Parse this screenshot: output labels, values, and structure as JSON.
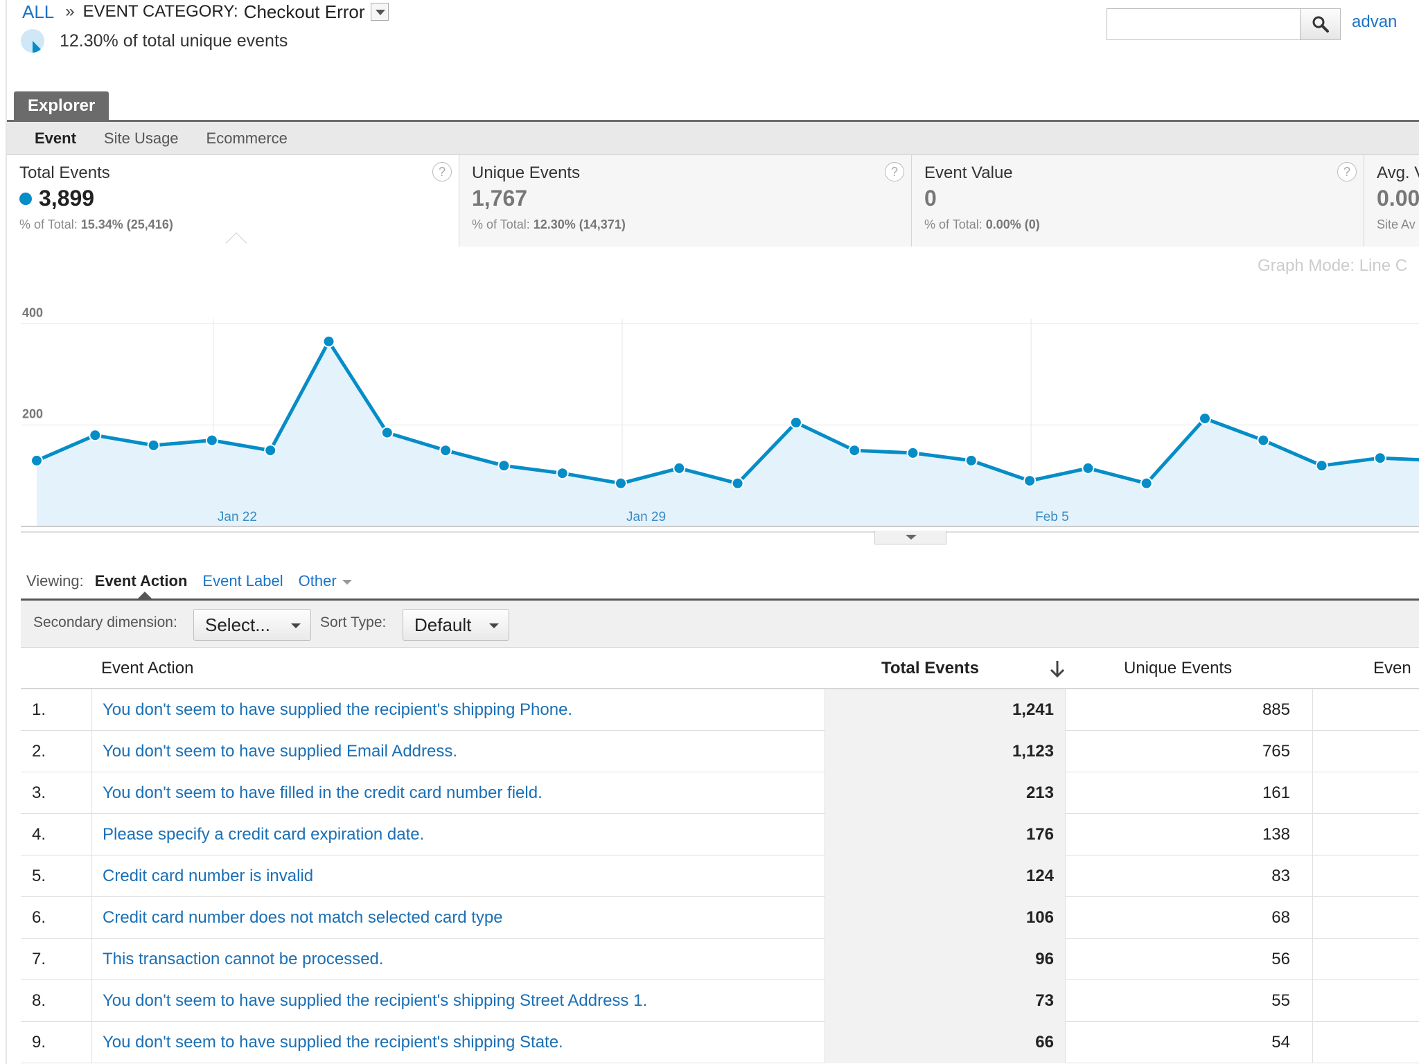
{
  "breadcrumb": {
    "all": "ALL",
    "separator": "»",
    "category_label": "EVENT CATEGORY:",
    "category_value": "Checkout Error"
  },
  "summary": {
    "text": "12.30% of total unique events",
    "share_fraction": 0.123
  },
  "explorer": {
    "tab": "Explorer",
    "subtabs": [
      "Event",
      "Site Usage",
      "Ecommerce"
    ],
    "active_subtab": "Event"
  },
  "scorecards": [
    {
      "title": "Total Events",
      "value": "3,899",
      "sub_prefix": "% of Total:",
      "sub_value": "15.34% (25,416)"
    },
    {
      "title": "Unique Events",
      "value": "1,767",
      "sub_prefix": "% of Total:",
      "sub_value": "12.30% (14,371)"
    },
    {
      "title": "Event Value",
      "value": "0",
      "sub_prefix": "% of Total:",
      "sub_value": "0.00% (0)"
    },
    {
      "title": "Avg. V",
      "value": "0.00",
      "sub_prefix": "Site Av",
      "sub_value": ""
    }
  ],
  "graph_mode": {
    "label": "Graph Mode:",
    "value": "Line C"
  },
  "chart_data": {
    "type": "area",
    "series": [
      {
        "name": "Total Events",
        "values": [
          130,
          180,
          160,
          170,
          150,
          365,
          185,
          150,
          120,
          105,
          85,
          115,
          85,
          205,
          150,
          145,
          130,
          90,
          115,
          85,
          213,
          170,
          120,
          135,
          130
        ]
      }
    ],
    "x_tick_labels": [
      "Jan 22",
      "Jan 29",
      "Feb 5"
    ],
    "x_tick_indices": [
      3,
      10,
      17
    ],
    "y_ticks": [
      400,
      200
    ],
    "ylim": [
      0,
      410
    ],
    "color": "#058dc7",
    "fill": "#e4f2fb",
    "grid": true
  },
  "viewing": {
    "label": "Viewing:",
    "options": [
      "Event Action",
      "Event Label",
      "Other"
    ],
    "active": "Event Action"
  },
  "toolbar": {
    "secondary_label": "Secondary dimension:",
    "secondary_value": "Select...",
    "sort_label": "Sort Type:",
    "sort_value": "Default",
    "search_value": "",
    "advanced": "advan"
  },
  "table": {
    "columns": [
      "Event Action",
      "Total Events",
      "Unique Events",
      "Even"
    ],
    "rows": [
      {
        "index": "1.",
        "action": "You don't seem to have supplied the recipient's shipping Phone.",
        "total": "1,241",
        "unique": "885"
      },
      {
        "index": "2.",
        "action": "You don't seem to have supplied Email Address.",
        "total": "1,123",
        "unique": "765"
      },
      {
        "index": "3.",
        "action": "You don't seem to have filled in the credit card number field.",
        "total": "213",
        "unique": "161"
      },
      {
        "index": "4.",
        "action": "Please specify a credit card expiration date.",
        "total": "176",
        "unique": "138"
      },
      {
        "index": "5.",
        "action": "Credit card number is invalid",
        "total": "124",
        "unique": "83"
      },
      {
        "index": "6.",
        "action": "Credit card number does not match selected card type",
        "total": "106",
        "unique": "68"
      },
      {
        "index": "7.",
        "action": "This transaction cannot be processed.",
        "total": "96",
        "unique": "56"
      },
      {
        "index": "8.",
        "action": "You don't seem to have supplied the recipient's shipping Street Address 1.",
        "total": "73",
        "unique": "55"
      },
      {
        "index": "9.",
        "action": "You don't seem to have supplied the recipient's shipping State.",
        "total": "66",
        "unique": "54"
      }
    ]
  },
  "colors": {
    "link": "#1a73c8",
    "accent": "#058dc7",
    "tab_bg": "#6b6b6b"
  }
}
